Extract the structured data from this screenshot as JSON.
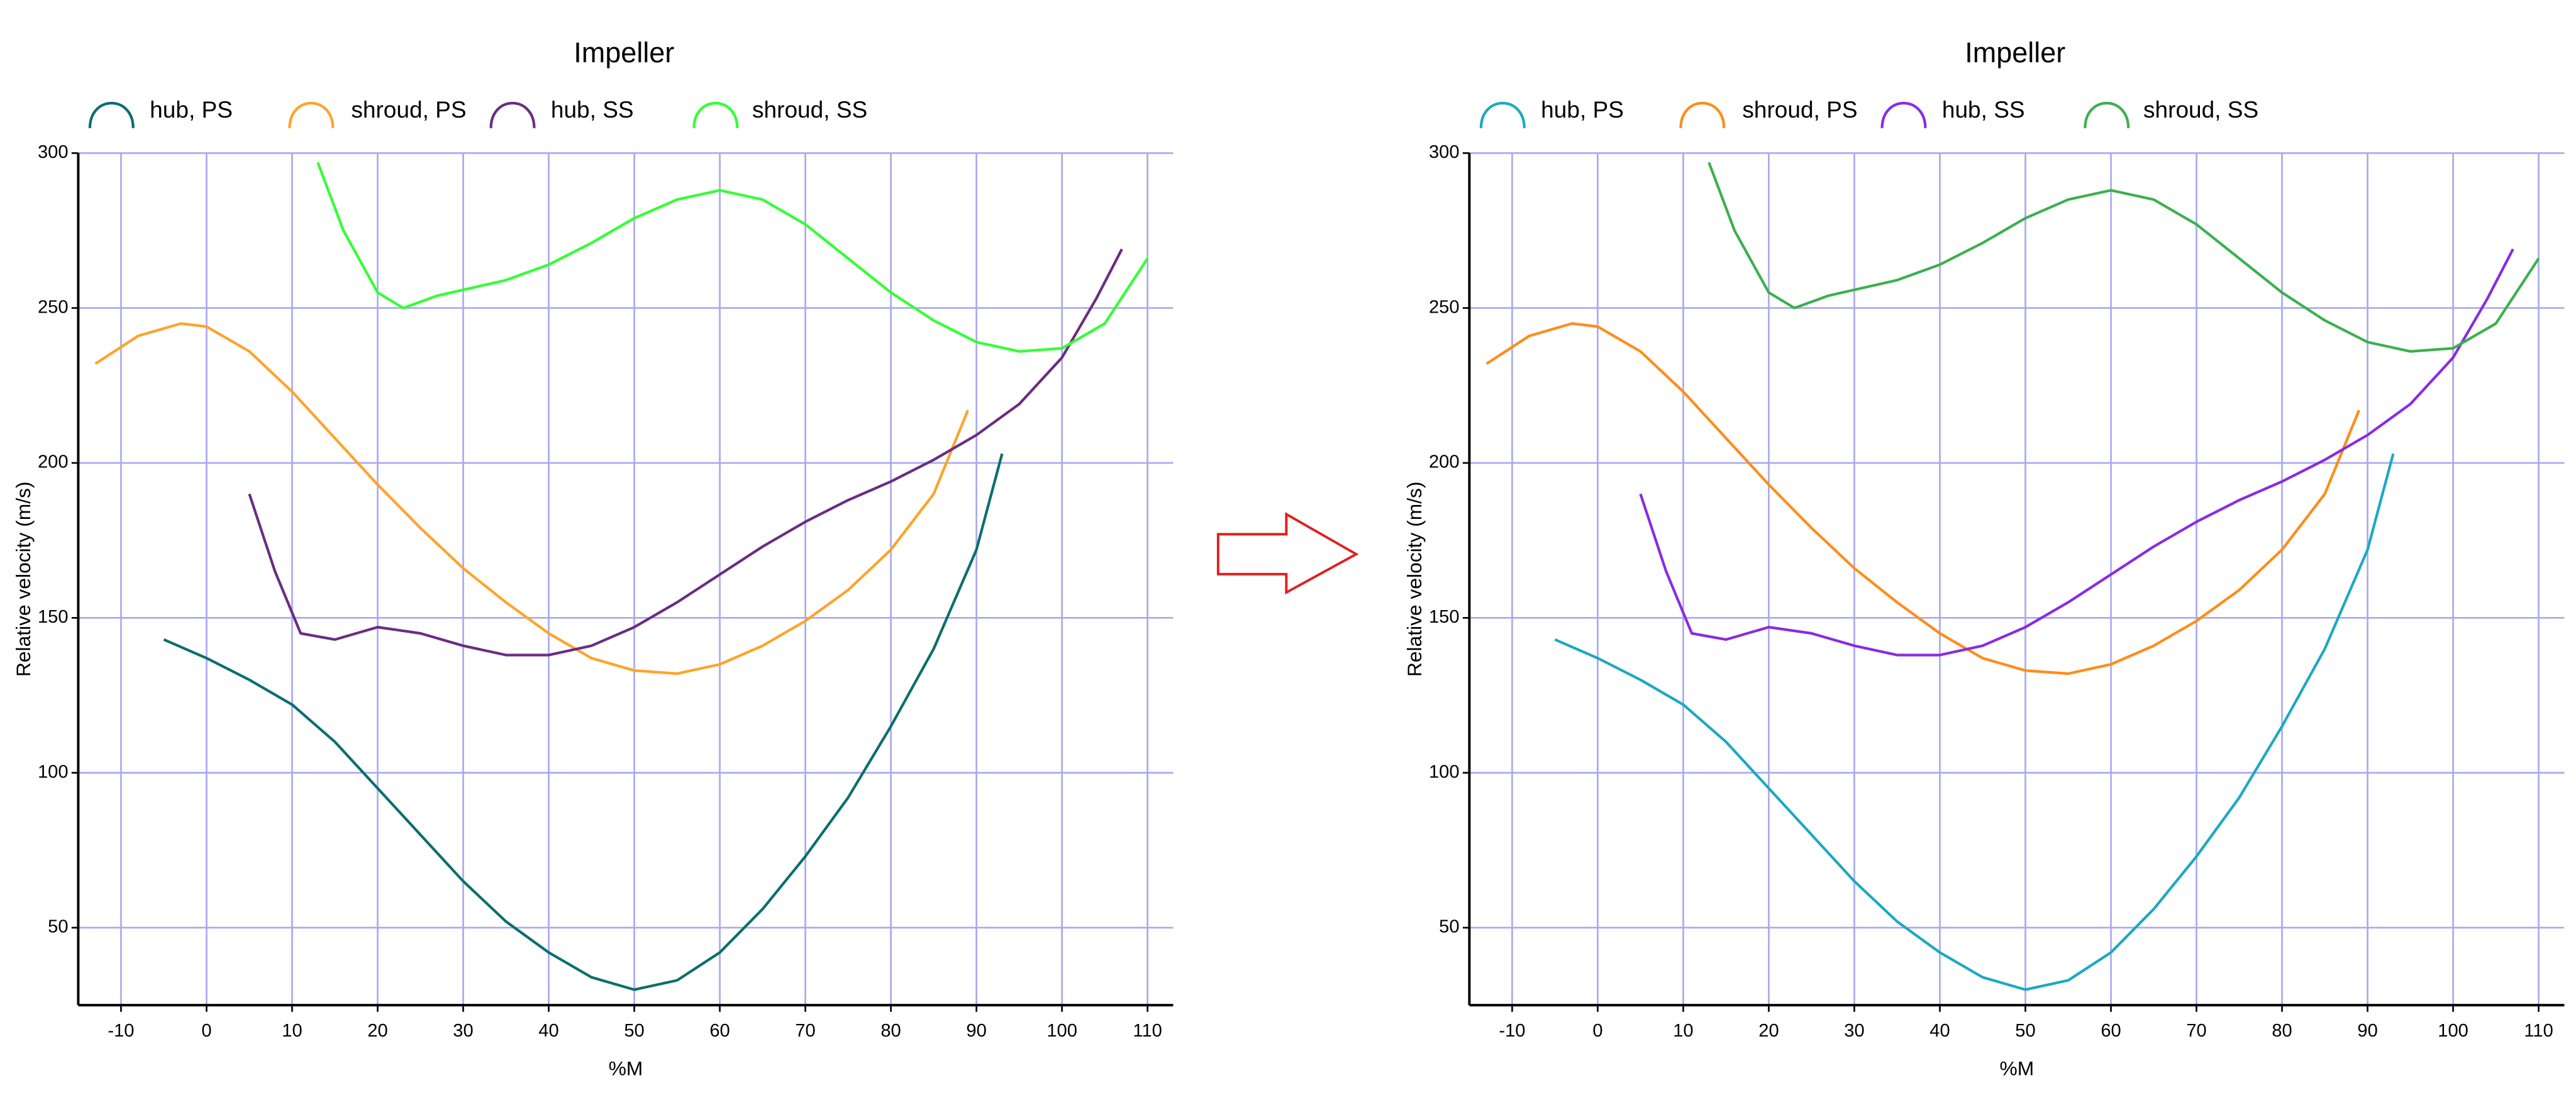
{
  "chart_data": [
    {
      "type": "line",
      "title": "Impeller",
      "x_label": "%M",
      "y_label": "Relative velocity (m/s)",
      "xlim": [
        -15,
        113
      ],
      "ylim": [
        25,
        300
      ],
      "xticks": [
        -10,
        0,
        10,
        20,
        30,
        40,
        50,
        60,
        70,
        80,
        90,
        100,
        110
      ],
      "yticks": [
        50,
        100,
        150,
        200,
        250,
        300
      ],
      "grid": true,
      "series": [
        {
          "name": "hub, PS",
          "color": "#0b6e6e",
          "x": [
            -5,
            0,
            5,
            10,
            15,
            20,
            25,
            30,
            35,
            40,
            45,
            50,
            55,
            60,
            65,
            70,
            75,
            80,
            85,
            90,
            93
          ],
          "values": [
            143,
            137,
            130,
            122,
            110,
            95,
            80,
            65,
            52,
            42,
            34,
            30,
            33,
            42,
            56,
            73,
            92,
            115,
            140,
            172,
            203
          ]
        },
        {
          "name": "shroud, PS",
          "color": "#ffa32a",
          "x": [
            -13,
            -8,
            -3,
            0,
            5,
            10,
            15,
            20,
            25,
            30,
            35,
            40,
            45,
            50,
            55,
            60,
            65,
            70,
            75,
            80,
            85,
            89
          ],
          "values": [
            232,
            241,
            245,
            244,
            236,
            223,
            208,
            193,
            179,
            166,
            155,
            145,
            137,
            133,
            132,
            135,
            141,
            149,
            159,
            172,
            190,
            217
          ]
        },
        {
          "name": "hub, SS",
          "color": "#6b2c82",
          "x": [
            5,
            8,
            11,
            15,
            20,
            25,
            30,
            35,
            40,
            45,
            50,
            55,
            60,
            65,
            70,
            75,
            80,
            85,
            90,
            95,
            100,
            104,
            107
          ],
          "values": [
            190,
            165,
            145,
            143,
            147,
            145,
            141,
            138,
            138,
            141,
            147,
            155,
            164,
            173,
            181,
            188,
            194,
            201,
            209,
            219,
            234,
            253,
            269
          ]
        },
        {
          "name": "shroud, SS",
          "color": "#33ff33",
          "x": [
            13,
            16,
            20,
            23,
            27,
            35,
            40,
            45,
            50,
            55,
            60,
            65,
            70,
            75,
            80,
            85,
            90,
            95,
            100,
            105,
            110
          ],
          "values": [
            297,
            275,
            255,
            250,
            254,
            259,
            264,
            271,
            279,
            285,
            288,
            285,
            277,
            266,
            255,
            246,
            239,
            236,
            237,
            245,
            266
          ]
        }
      ]
    },
    {
      "type": "line",
      "title": "Impeller",
      "x_label": "%M",
      "y_label": "Relative velocity (m/s)",
      "xlim": [
        -15,
        113
      ],
      "ylim": [
        25,
        300
      ],
      "xticks": [
        -10,
        0,
        10,
        20,
        30,
        40,
        50,
        60,
        70,
        80,
        90,
        100,
        110
      ],
      "yticks": [
        50,
        100,
        150,
        200,
        250,
        300
      ],
      "grid": true,
      "series": [
        {
          "name": "hub, PS",
          "color": "#1ba9c2",
          "x": [
            -5,
            0,
            5,
            10,
            15,
            20,
            25,
            30,
            35,
            40,
            45,
            50,
            55,
            60,
            65,
            70,
            75,
            80,
            85,
            90,
            93
          ],
          "values": [
            143,
            137,
            130,
            122,
            110,
            95,
            80,
            65,
            52,
            42,
            34,
            30,
            33,
            42,
            56,
            73,
            92,
            115,
            140,
            172,
            203
          ]
        },
        {
          "name": "shroud, PS",
          "color": "#ff8c1a",
          "x": [
            -13,
            -8,
            -3,
            0,
            5,
            10,
            15,
            20,
            25,
            30,
            35,
            40,
            45,
            50,
            55,
            60,
            65,
            70,
            75,
            80,
            85,
            89
          ],
          "values": [
            232,
            241,
            245,
            244,
            236,
            223,
            208,
            193,
            179,
            166,
            155,
            145,
            137,
            133,
            132,
            135,
            141,
            149,
            159,
            172,
            190,
            217
          ]
        },
        {
          "name": "hub, SS",
          "color": "#8a2be2",
          "x": [
            5,
            8,
            11,
            15,
            20,
            25,
            30,
            35,
            40,
            45,
            50,
            55,
            60,
            65,
            70,
            75,
            80,
            85,
            90,
            95,
            100,
            104,
            107
          ],
          "values": [
            190,
            165,
            145,
            143,
            147,
            145,
            141,
            138,
            138,
            141,
            147,
            155,
            164,
            173,
            181,
            188,
            194,
            201,
            209,
            219,
            234,
            253,
            269
          ]
        },
        {
          "name": "shroud, SS",
          "color": "#3cb04e",
          "x": [
            13,
            16,
            20,
            23,
            27,
            35,
            40,
            45,
            50,
            55,
            60,
            65,
            70,
            75,
            80,
            85,
            90,
            95,
            100,
            105,
            110
          ],
          "values": [
            297,
            275,
            255,
            250,
            254,
            259,
            264,
            271,
            279,
            285,
            288,
            285,
            277,
            266,
            255,
            246,
            239,
            236,
            237,
            245,
            266
          ]
        }
      ]
    }
  ]
}
